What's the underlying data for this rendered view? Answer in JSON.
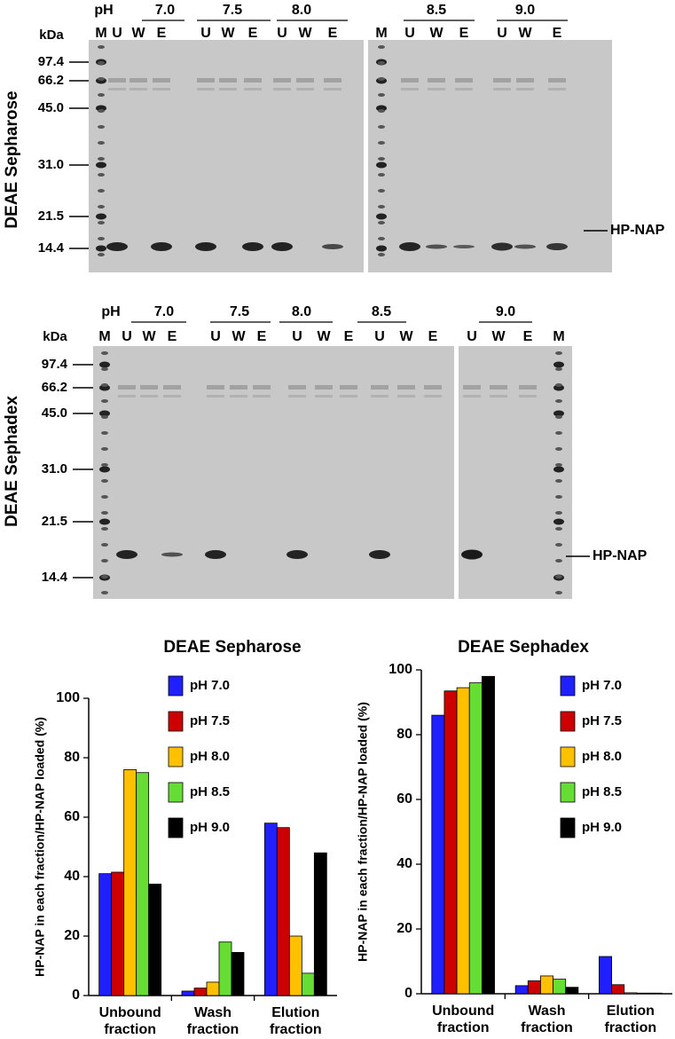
{
  "gels": [
    {
      "side_label": "DEAE Sepharose",
      "ph_label": "pH",
      "kda_label": "kDa",
      "band_label": "HP-NAP",
      "ph_groups": [
        "7.0",
        "7.5",
        "8.0",
        "8.5",
        "9.0"
      ],
      "lanes": [
        "M",
        "U",
        "W",
        "E",
        "U",
        "W",
        "E",
        "U",
        "W",
        "E",
        "M",
        "U",
        "W",
        "E",
        "U",
        "W",
        "E"
      ],
      "markers": [
        "97.4",
        "66.2",
        "45.0",
        "31.0",
        "21.5",
        "14.4"
      ]
    },
    {
      "side_label": "DEAE Sephadex",
      "ph_label": "pH",
      "kda_label": "kDa",
      "band_label": "HP-NAP",
      "ph_groups": [
        "7.0",
        "7.5",
        "8.0",
        "8.5",
        "9.0"
      ],
      "lanes": [
        "M",
        "U",
        "W",
        "E",
        "U",
        "W",
        "E",
        "U",
        "W",
        "E",
        "U",
        "W",
        "E",
        "U",
        "W",
        "E",
        "M"
      ],
      "markers": [
        "97.4",
        "66.2",
        "45.0",
        "31.0",
        "21.5",
        "14.4"
      ]
    }
  ],
  "chart_data": [
    {
      "type": "bar",
      "title": "DEAE Sepharose",
      "y_label": "HP-NAP in each fraction/HP-NAP loaded (%)",
      "categories": [
        [
          "Unbound",
          "fraction"
        ],
        [
          "Wash",
          "fraction"
        ],
        [
          "Elution",
          "fraction"
        ]
      ],
      "series": [
        {
          "name": "pH 7.0",
          "color": "#1f1fff",
          "values": [
            41,
            1.5,
            58
          ]
        },
        {
          "name": "pH 7.5",
          "color": "#cc0000",
          "values": [
            41.5,
            2.5,
            56.5
          ]
        },
        {
          "name": "pH 8.0",
          "color": "#ffc000",
          "values": [
            76,
            4.5,
            20
          ]
        },
        {
          "name": "pH 8.5",
          "color": "#66dd33",
          "values": [
            75,
            18,
            7.5
          ]
        },
        {
          "name": "pH 9.0",
          "color": "#000000",
          "values": [
            37.5,
            14.5,
            48
          ]
        }
      ],
      "ylim": [
        0,
        100
      ],
      "yticks": [
        0,
        20,
        40,
        60,
        80,
        100
      ],
      "legend": "top-right"
    },
    {
      "type": "bar",
      "title": "DEAE Sephadex",
      "y_label": "HP-NAP in each fraction/HP-NAP loaded (%)",
      "categories": [
        [
          "Unbound",
          "fraction"
        ],
        [
          "Wash",
          "fraction"
        ],
        [
          "Elution",
          "fraction"
        ]
      ],
      "series": [
        {
          "name": "pH 7.0",
          "color": "#1f1fff",
          "values": [
            86,
            2.5,
            11.5
          ]
        },
        {
          "name": "pH 7.5",
          "color": "#cc0000",
          "values": [
            93.5,
            4,
            2.8
          ]
        },
        {
          "name": "pH 8.0",
          "color": "#ffc000",
          "values": [
            94.5,
            5.5,
            0.3
          ]
        },
        {
          "name": "pH 8.5",
          "color": "#66dd33",
          "values": [
            96,
            4.5,
            0.2
          ]
        },
        {
          "name": "pH 9.0",
          "color": "#000000",
          "values": [
            98,
            2,
            0.2
          ]
        }
      ],
      "ylim": [
        0,
        100
      ],
      "yticks": [
        0,
        20,
        40,
        60,
        80,
        100
      ],
      "legend": "top-right"
    }
  ]
}
